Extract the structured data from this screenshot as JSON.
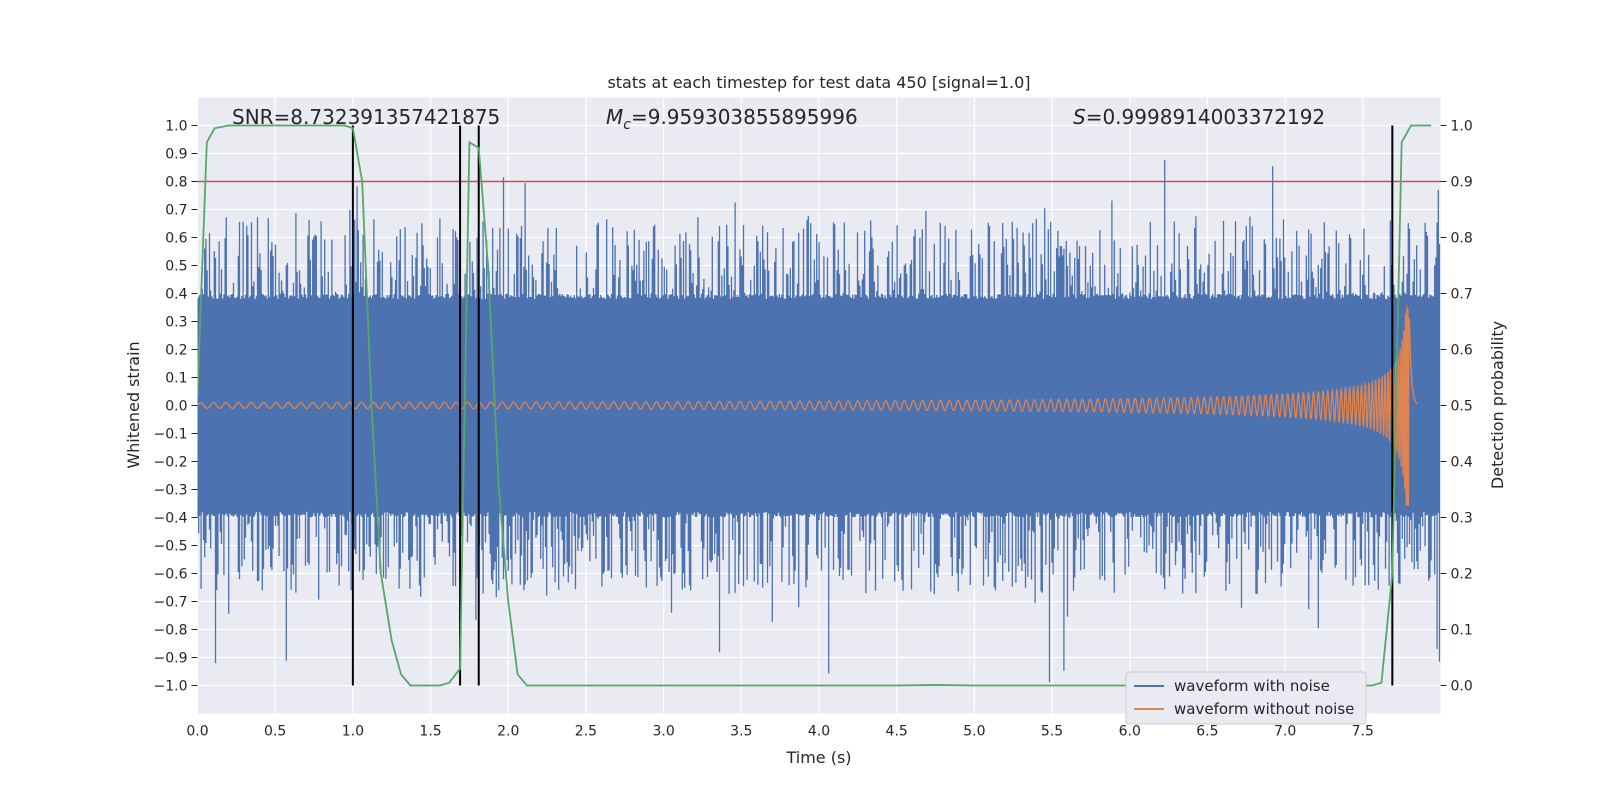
{
  "chart_data": {
    "type": "line",
    "title": "stats at each timestep for test data 450 [signal=1.0]",
    "xlabel": "Time (s)",
    "ylabel_left": "Whitened strain",
    "ylabel_right": "Detection probability",
    "xlim": [
      0.0,
      8.0
    ],
    "ylim_left": [
      -1.1,
      1.1
    ],
    "ylim_right": [
      -0.05,
      1.05
    ],
    "x_ticks": [
      0.0,
      0.5,
      1.0,
      1.5,
      2.0,
      2.5,
      3.0,
      3.5,
      4.0,
      4.5,
      5.0,
      5.5,
      6.0,
      6.5,
      7.0,
      7.5
    ],
    "x_tick_labels": [
      "0.0",
      "0.5",
      "1.0",
      "1.5",
      "2.0",
      "2.5",
      "3.0",
      "3.5",
      "4.0",
      "4.5",
      "5.0",
      "5.5",
      "6.0",
      "6.5",
      "7.0",
      "7.5"
    ],
    "y_left_ticks": [
      1.0,
      0.9,
      0.8,
      0.7,
      0.6,
      0.5,
      0.4,
      0.3,
      0.2,
      0.1,
      0.0,
      -0.1,
      -0.2,
      -0.3,
      -0.4,
      -0.5,
      -0.6,
      -0.7,
      -0.8,
      -0.9,
      -1.0
    ],
    "y_left_tick_labels": [
      "1.0",
      "0.9",
      "0.8",
      "0.7",
      "0.6",
      "0.5",
      "0.4",
      "0.3",
      "0.2",
      "0.1",
      "0.0",
      "−0.1",
      "−0.2",
      "−0.3",
      "−0.4",
      "−0.5",
      "−0.6",
      "−0.7",
      "−0.8",
      "−0.9",
      "−1.0"
    ],
    "y_right_ticks": [
      1.0,
      0.9,
      0.8,
      0.7,
      0.6,
      0.5,
      0.4,
      0.3,
      0.2,
      0.1,
      0.0
    ],
    "y_right_tick_labels": [
      "1.0",
      "0.9",
      "0.8",
      "0.7",
      "0.6",
      "0.5",
      "0.4",
      "0.3",
      "0.2",
      "0.1",
      "0.0"
    ],
    "annotations": {
      "snr": "SNR=8.732391357421875",
      "mc_symbol": "M",
      "mc_subscript": "c",
      "mc_value": "=9.959303855895996",
      "s_symbol": "S",
      "s_value": "=0.9998914003372192"
    },
    "threshold": {
      "value_right": 0.9,
      "color": "#c44e52"
    },
    "vertical_lines": [
      1.0,
      1.69,
      1.81,
      7.69
    ],
    "vertical_line_color": "#000000",
    "legend": {
      "location": "lower-right",
      "entries": [
        {
          "label": "waveform with noise",
          "color": "#4c72b0"
        },
        {
          "label": "waveform without noise",
          "color": "#dd8452"
        }
      ]
    },
    "series": [
      {
        "name": "waveform with noise",
        "axis": "left",
        "color": "#4c72b0",
        "duration": 8.0,
        "core_amplitude": 0.38,
        "peak_amplitude": 1.0
      },
      {
        "name": "waveform without noise",
        "axis": "left",
        "color": "#dd8452",
        "merger_time": 7.8,
        "end_time": 7.85,
        "start_amplitude": 0.01,
        "peak_amplitude": 0.36
      },
      {
        "name": "detection probability",
        "axis": "right",
        "color": "#55a868",
        "x": [
          0.0,
          0.06,
          0.11,
          0.2,
          0.3,
          0.4,
          0.5,
          0.6,
          0.7,
          0.8,
          0.9,
          0.95,
          1.0,
          1.06,
          1.12,
          1.18,
          1.25,
          1.31,
          1.37,
          1.44,
          1.5,
          1.56,
          1.62,
          1.69,
          1.75,
          1.81,
          1.87,
          1.94,
          2.0,
          2.06,
          2.12,
          2.5,
          3.0,
          4.0,
          4.5,
          4.75,
          5.0,
          6.0,
          7.0,
          7.4,
          7.5,
          7.56,
          7.62,
          7.69,
          7.75,
          7.81,
          7.87,
          7.94
        ],
        "y": [
          0.52,
          0.97,
          0.995,
          1.0,
          1.0,
          1.0,
          1.0,
          1.0,
          1.0,
          1.0,
          1.0,
          1.0,
          0.995,
          0.9,
          0.5,
          0.2,
          0.08,
          0.02,
          0.0,
          0.0,
          0.0,
          0.0,
          0.005,
          0.03,
          0.97,
          0.96,
          0.75,
          0.35,
          0.15,
          0.02,
          0.0,
          0.0,
          0.0,
          0.0,
          0.0,
          0.001,
          0.0,
          0.0,
          0.0,
          0.0,
          0.0,
          0.0,
          0.005,
          0.2,
          0.97,
          1.0,
          1.0,
          1.0
        ]
      }
    ]
  }
}
